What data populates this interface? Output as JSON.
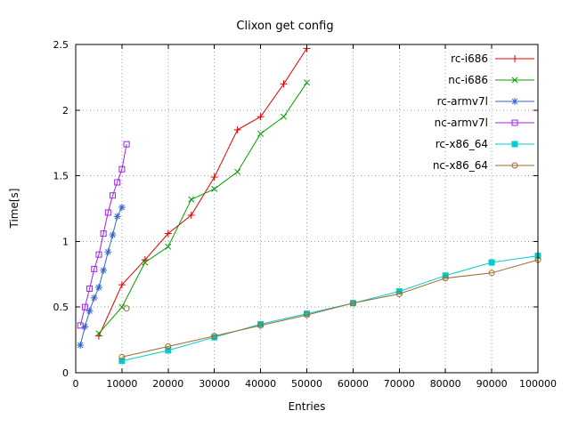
{
  "chart_data": {
    "type": "line",
    "title": "Clixon get config",
    "xlabel": "Entries",
    "ylabel": "Time[s]",
    "xlim": [
      0,
      100000
    ],
    "ylim": [
      0,
      2.5
    ],
    "x_ticks": [
      0,
      10000,
      20000,
      30000,
      40000,
      50000,
      60000,
      70000,
      80000,
      90000,
      100000
    ],
    "y_ticks": [
      0,
      0.5,
      1,
      1.5,
      2,
      2.5
    ],
    "grid": true,
    "legend_position": "top-right-inside",
    "background_color": "#ffffff",
    "grid_color": "#9e9e9e",
    "border_color": "#000000",
    "series": [
      {
        "name": "rc-i686",
        "color": "#e00000",
        "marker": "plus",
        "points": [
          [
            5000,
            0.28
          ],
          [
            10000,
            0.67
          ],
          [
            15000,
            0.86
          ],
          [
            20000,
            1.06
          ],
          [
            25000,
            1.2
          ],
          [
            30000,
            1.49
          ],
          [
            35000,
            1.85
          ],
          [
            40000,
            1.95
          ],
          [
            45000,
            2.2
          ],
          [
            50000,
            2.47
          ]
        ]
      },
      {
        "name": "nc-i686",
        "color": "#00a000",
        "marker": "cross",
        "points": [
          [
            5000,
            0.3
          ],
          [
            10000,
            0.5
          ],
          [
            15000,
            0.84
          ],
          [
            20000,
            0.96
          ],
          [
            25000,
            1.32
          ],
          [
            30000,
            1.4
          ],
          [
            35000,
            1.53
          ],
          [
            40000,
            1.82
          ],
          [
            45000,
            1.95
          ],
          [
            50000,
            2.21
          ]
        ]
      },
      {
        "name": "rc-armv7l",
        "color": "#3366cc",
        "marker": "asterisk",
        "points": [
          [
            1000,
            0.21
          ],
          [
            2000,
            0.35
          ],
          [
            3000,
            0.47
          ],
          [
            4000,
            0.57
          ],
          [
            5000,
            0.65
          ],
          [
            6000,
            0.78
          ],
          [
            7000,
            0.92
          ],
          [
            8000,
            1.05
          ],
          [
            9000,
            1.19
          ],
          [
            10000,
            1.26
          ]
        ]
      },
      {
        "name": "nc-armv7l",
        "color": "#a020f0",
        "marker": "square-open",
        "points": [
          [
            1000,
            0.36
          ],
          [
            2000,
            0.5
          ],
          [
            3000,
            0.64
          ],
          [
            4000,
            0.79
          ],
          [
            5000,
            0.9
          ],
          [
            6000,
            1.06
          ],
          [
            7000,
            1.22
          ],
          [
            8000,
            1.35
          ],
          [
            9000,
            1.45
          ],
          [
            10000,
            1.55
          ],
          [
            11000,
            1.74
          ]
        ]
      },
      {
        "name": "rc-x86_64",
        "color": "#00cdcd",
        "marker": "square-filled",
        "points": [
          [
            10000,
            0.09
          ],
          [
            20000,
            0.17
          ],
          [
            30000,
            0.27
          ],
          [
            40000,
            0.37
          ],
          [
            50000,
            0.45
          ],
          [
            60000,
            0.53
          ],
          [
            70000,
            0.62
          ],
          [
            80000,
            0.74
          ],
          [
            90000,
            0.84
          ],
          [
            100000,
            0.89
          ]
        ]
      },
      {
        "name": "nc-x86_64",
        "color": "#a06a29",
        "marker": "circle-open",
        "points": [
          [
            10000,
            0.12
          ],
          [
            20000,
            0.2
          ],
          [
            30000,
            0.28
          ],
          [
            40000,
            0.36
          ],
          [
            50000,
            0.44
          ],
          [
            60000,
            0.53
          ],
          [
            70000,
            0.6
          ],
          [
            80000,
            0.72
          ],
          [
            90000,
            0.76
          ],
          [
            100000,
            0.86
          ]
        ],
        "extra_marker_points": [
          [
            11000,
            0.49
          ]
        ]
      }
    ]
  }
}
